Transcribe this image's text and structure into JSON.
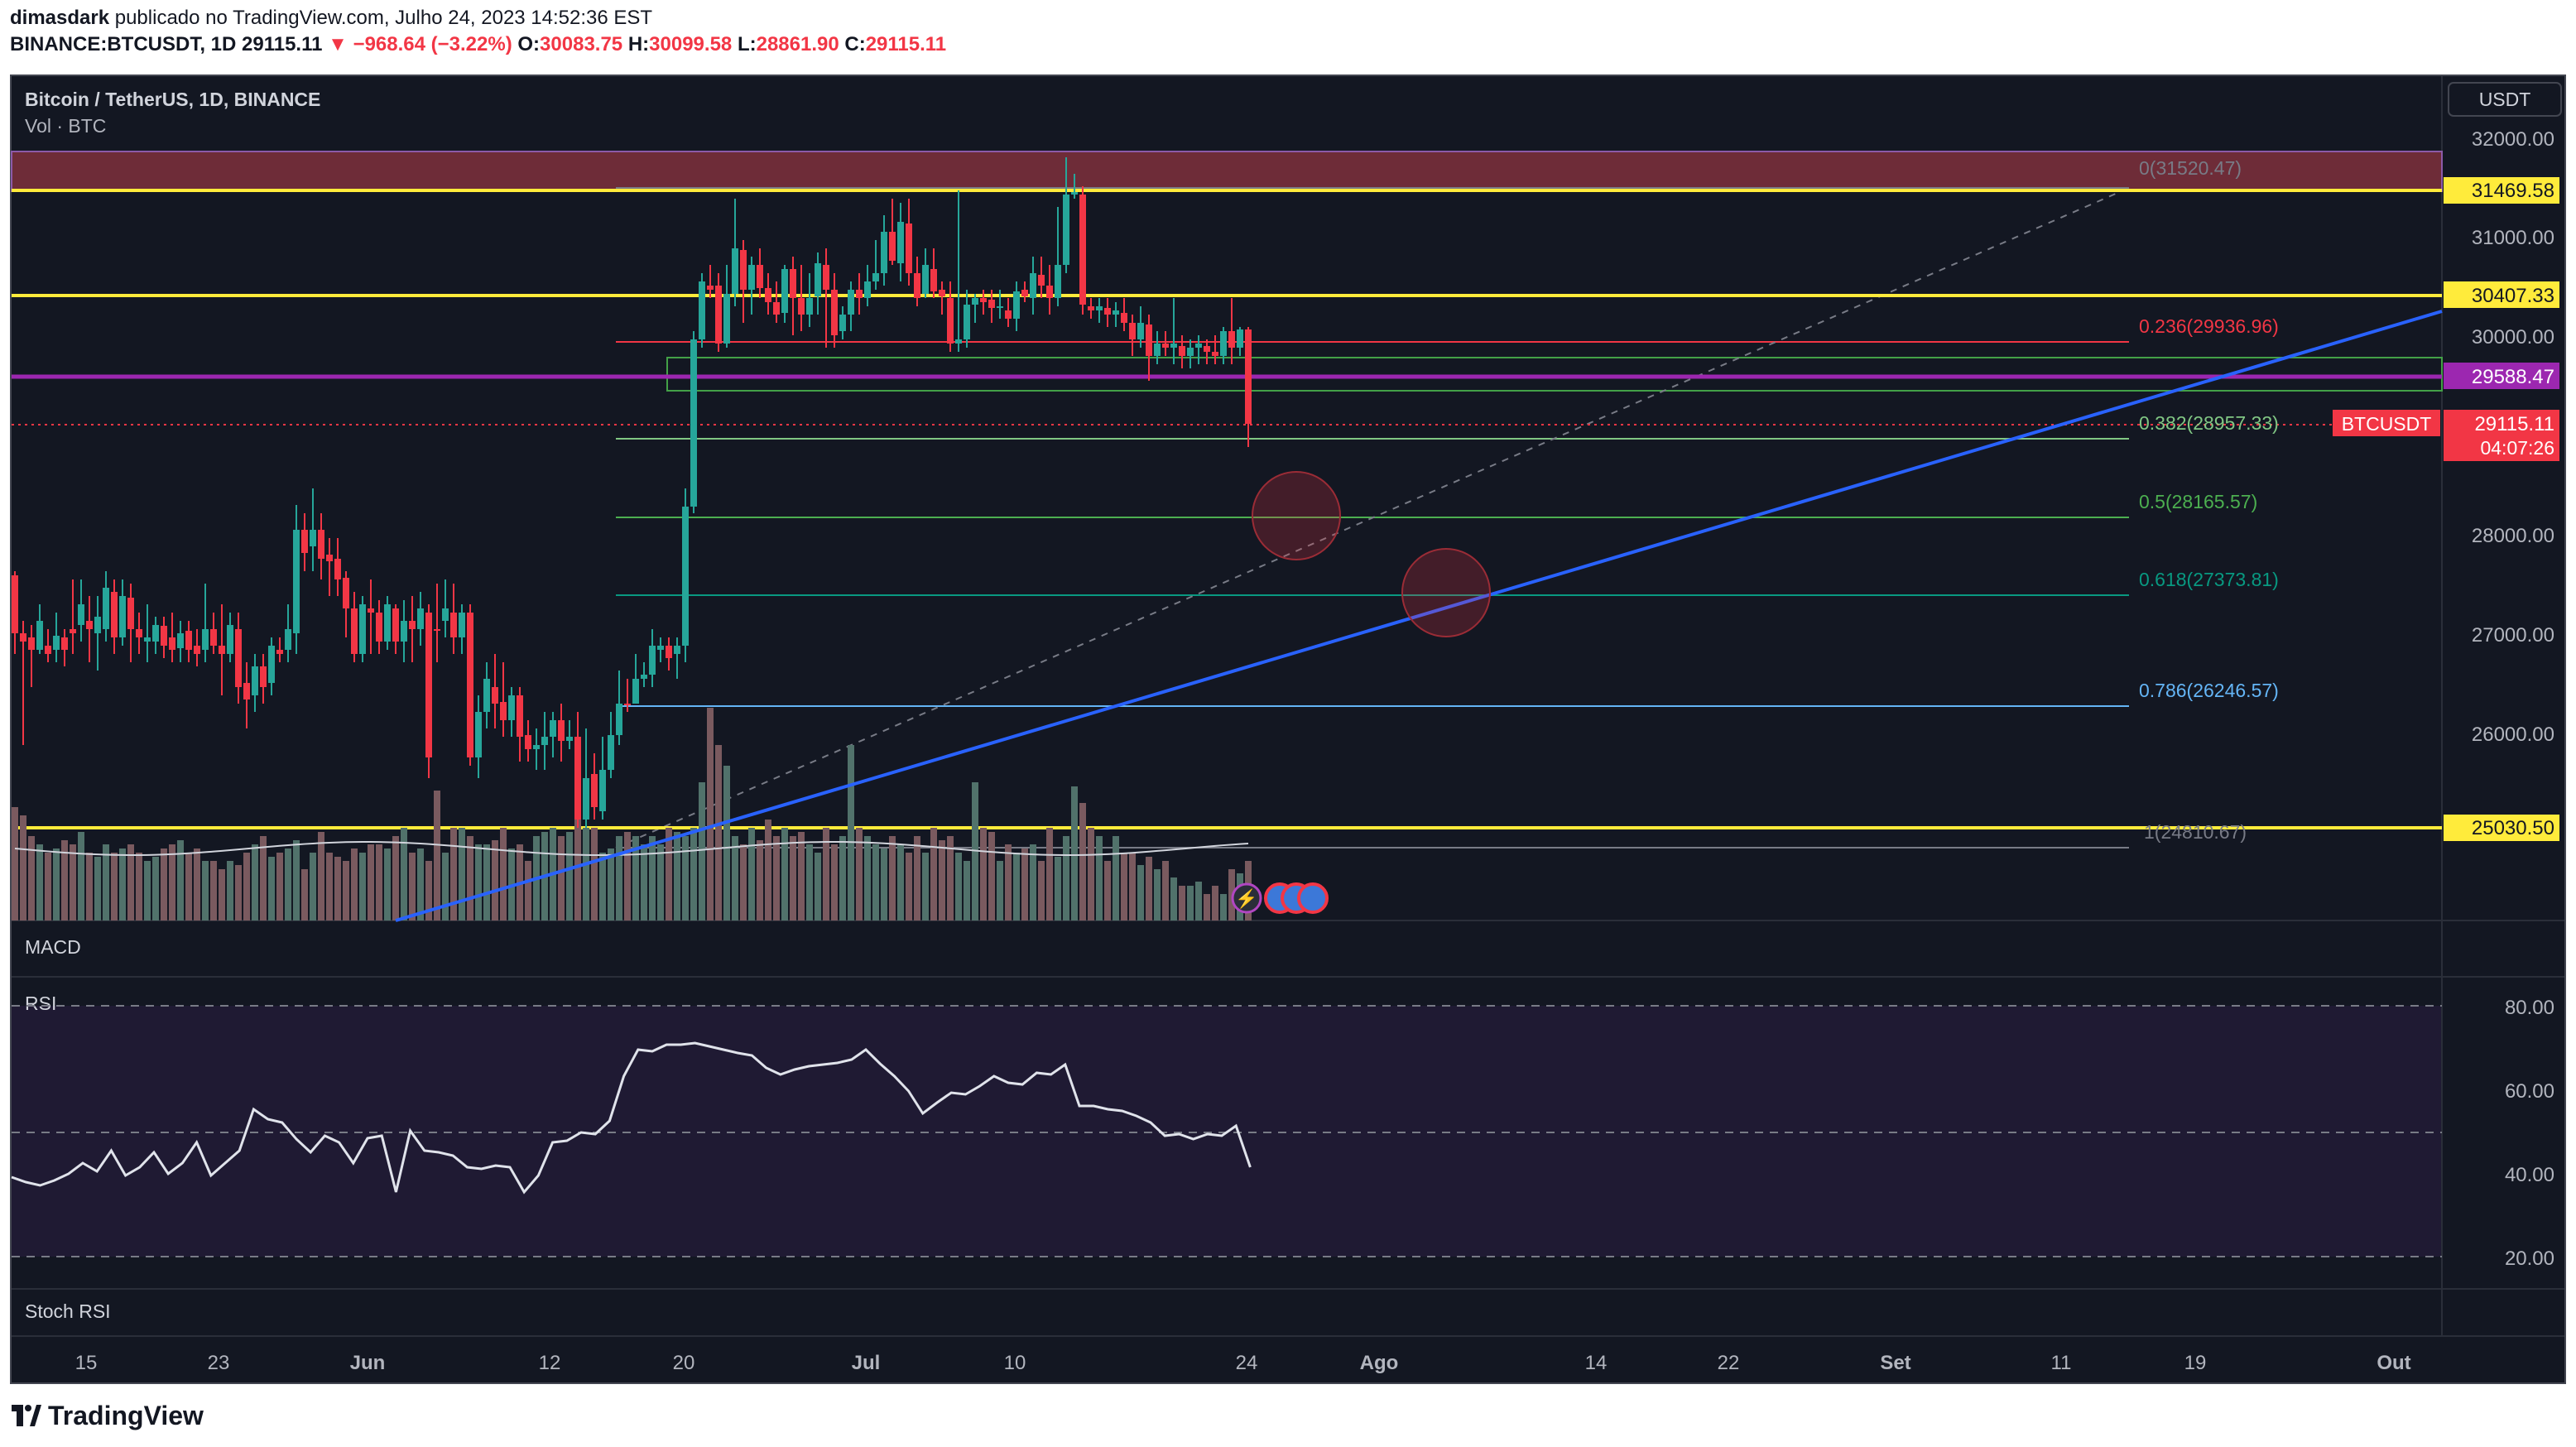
{
  "header": {
    "author": "dimasdark",
    "published_text": "publicado no TradingView.com, Julho 24, 2023 14:52:36 EST",
    "symbol": "BINANCE:BTCUSDT, 1D",
    "last": "29115.11",
    "change": "▼ −968.64 (−3.22%)",
    "o_label": "O:",
    "o": "30083.75",
    "h_label": "H:",
    "h": "30099.58",
    "l_label": "L:",
    "l": "28861.90",
    "c_label": "C:",
    "c": "29115.11"
  },
  "legend": {
    "title": "Bitcoin / TetherUS, 1D, BINANCE",
    "vol": "Vol · BTC"
  },
  "currency": "USDT",
  "price_axis": [
    "32000.00",
    "31000.00",
    "30000.00",
    "28000.00",
    "27000.00",
    "26000.00"
  ],
  "price_tags": {
    "line_31469": "31469.58",
    "line_30407": "30407.33",
    "line_29588": "29588.47",
    "line_25030": "25030.50",
    "btc_label": "BTCUSDT",
    "btc_price": "29115.11",
    "countdown": "04:07:26"
  },
  "fib": {
    "f0": "0(31520.47)",
    "f236": "0.236(29936.96)",
    "f382": "0.382(28957.33)",
    "f5": "0.5(28165.57)",
    "f618": "0.618(27373.81)",
    "f786": "0.786(26246.57)",
    "f1": "1(24810.67)"
  },
  "panes": {
    "macd": "MACD",
    "rsi": "RSI",
    "stoch": "Stoch RSI"
  },
  "rsi_axis": [
    "80.00",
    "60.00",
    "40.00",
    "20.00"
  ],
  "time_axis": [
    "15",
    "23",
    "Jun",
    "12",
    "20",
    "Jul",
    "10",
    "24",
    "Ago",
    "14",
    "22",
    "Set",
    "11",
    "19",
    "Out"
  ],
  "brand": "TradingView",
  "colors": {
    "up": "#26a69a",
    "down": "#f23645",
    "yellow": "#ffeb3b",
    "purple": "#9c27b0",
    "trend": "#2962ff"
  }
}
